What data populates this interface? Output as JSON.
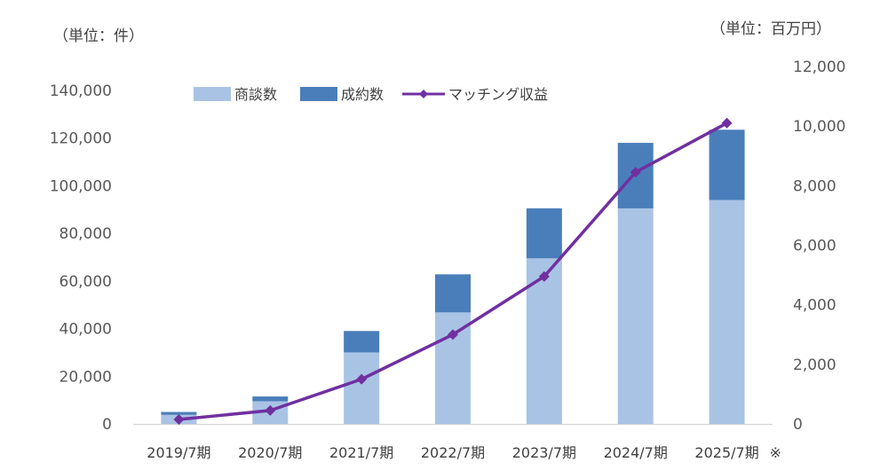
{
  "chart_data": {
    "type": "bar+line",
    "categories": [
      "2019/7期",
      "2020/7期",
      "2021/7期",
      "2022/7期",
      "2023/7期",
      "2024/7期",
      "2025/7期"
    ],
    "category_suffix": "※",
    "left_axis_unit": "（単位：件）",
    "right_axis_unit": "（単位：百万円）",
    "left_ylim": [
      0,
      140000
    ],
    "left_ticks": [
      "0",
      "20,000",
      "40,000",
      "60,000",
      "80,000",
      "100,000",
      "120,000",
      "140,000"
    ],
    "right_ylim": [
      0,
      12000
    ],
    "right_ticks": [
      "0",
      "2,000",
      "4,000",
      "6,000",
      "8,000",
      "10,000",
      "12,000"
    ],
    "series": [
      {
        "name": "商談数",
        "kind": "stacked-bar",
        "axis": "left",
        "color": "#A9C3E5",
        "values": [
          3800,
          9500,
          30000,
          46800,
          69500,
          90500,
          94000
        ]
      },
      {
        "name": "成約数",
        "kind": "stacked-bar",
        "axis": "left",
        "color": "#4A7EBB",
        "values": [
          1200,
          2000,
          9000,
          16000,
          21000,
          27500,
          29500
        ]
      },
      {
        "name": "マッチング収益",
        "kind": "line",
        "axis": "right",
        "color": "#7030A0",
        "values": [
          150,
          450,
          1500,
          3000,
          4950,
          8450,
          10100
        ]
      }
    ],
    "legend": [
      "商談数",
      "成約数",
      "マッチング収益"
    ]
  }
}
